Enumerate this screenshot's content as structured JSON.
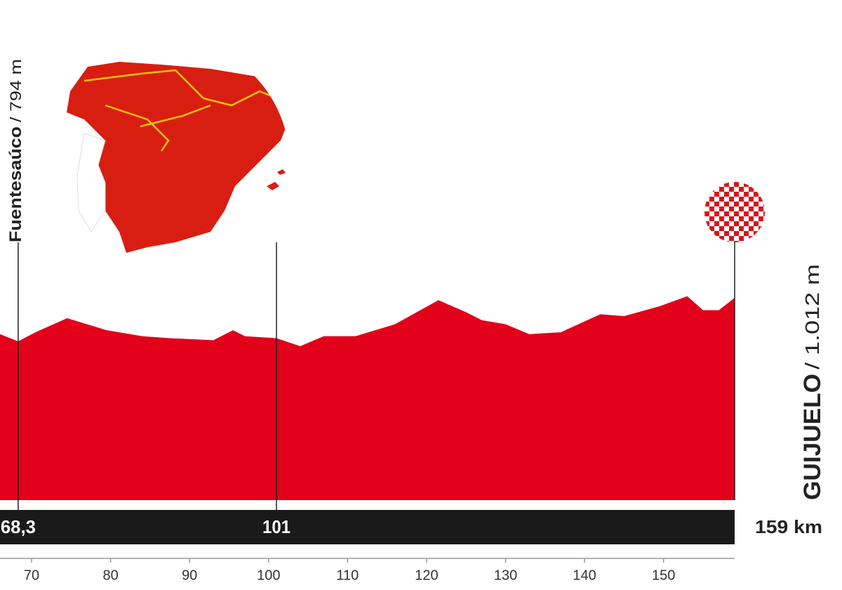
{
  "chart_data": {
    "type": "area",
    "color": "#e2001a",
    "x": [
      66,
      68.3,
      70.5,
      74.5,
      79.5,
      84,
      87.5,
      93,
      95.5,
      97,
      101,
      104,
      107,
      111,
      116,
      121.5,
      125,
      127,
      130,
      133,
      137,
      142,
      145,
      149.5,
      153,
      155,
      157,
      159
    ],
    "values": [
      830,
      794,
      840,
      910,
      850,
      820,
      810,
      800,
      850,
      820,
      810,
      770,
      820,
      820,
      880,
      1000,
      940,
      900,
      880,
      830,
      840,
      930,
      920,
      970,
      1020,
      950,
      950,
      1012
    ],
    "xlim": [
      66,
      159
    ],
    "xticks": [
      70,
      80,
      90,
      100,
      110,
      120,
      130,
      140,
      150
    ],
    "ylim": [
      0,
      2400
    ],
    "waypoints": [
      {
        "name": "Fuentesaúco",
        "altitude": "/ 794 m",
        "km": {
          "value": 68.3,
          "label": "68,3"
        }
      },
      {
        "km": 101
      },
      {
        "name": "GUIJUELO",
        "altitude": "/ 1.012 m",
        "km": {
          "value": 159,
          "label": "159 km"
        }
      }
    ]
  }
}
